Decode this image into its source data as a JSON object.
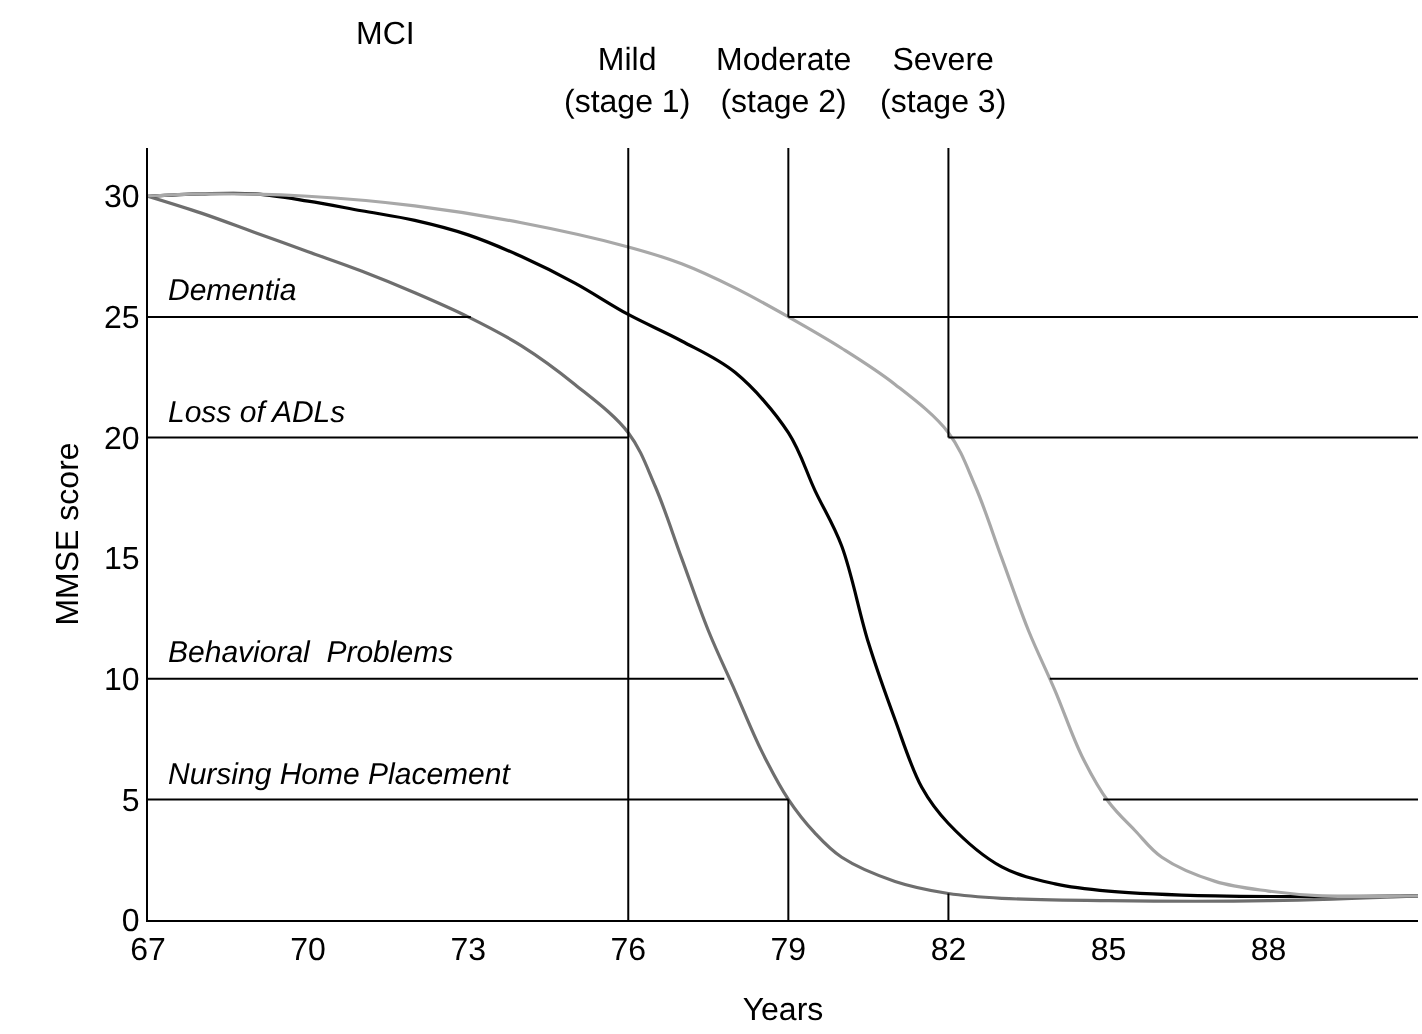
{
  "chart_data": {
    "type": "line",
    "xlabel": "Years",
    "ylabel": "MMSE score",
    "xlim": [
      67,
      90.8
    ],
    "ylim": [
      0,
      32
    ],
    "xticks": [
      67,
      70,
      73,
      76,
      79,
      82,
      85,
      88
    ],
    "yticks": [
      0,
      5,
      10,
      15,
      20,
      25,
      30
    ],
    "marker": "none",
    "line_style": "solid",
    "series": [
      {
        "color": "#6e6e6e",
        "x": [
          67,
          68,
          69,
          70,
          71,
          72,
          73,
          74,
          75,
          76,
          76.5,
          77,
          77.5,
          78,
          78.5,
          79,
          79.5,
          80,
          81,
          82,
          83,
          85,
          88,
          90.8
        ],
        "values": [
          30,
          29.3,
          28.5,
          27.7,
          26.9,
          26.0,
          25.0,
          23.8,
          22.2,
          20.2,
          18,
          15,
          12,
          9.5,
          7,
          5,
          3.6,
          2.6,
          1.6,
          1.1,
          0.9,
          0.8,
          0.8,
          1.0
        ]
      },
      {
        "color": "#000000",
        "x": [
          67,
          68,
          69,
          70,
          71,
          72,
          73,
          74,
          75,
          76,
          77,
          78,
          79,
          79.5,
          80,
          80.5,
          81,
          81.5,
          82,
          83,
          84,
          85,
          87,
          90.8
        ],
        "values": [
          30,
          30.1,
          30.1,
          29.8,
          29.4,
          29.0,
          28.4,
          27.5,
          26.4,
          25.1,
          24.0,
          22.7,
          20.2,
          17.8,
          15.5,
          11.5,
          8.3,
          5.5,
          4.0,
          2.2,
          1.5,
          1.2,
          1.0,
          1.0
        ]
      },
      {
        "color": "#a8a8a8",
        "x": [
          67,
          68,
          70,
          72,
          74,
          76,
          77,
          78,
          79,
          80,
          81,
          82,
          82.5,
          83,
          83.5,
          84,
          84.5,
          85,
          85.5,
          86,
          87,
          88,
          89,
          90.8
        ],
        "values": [
          30,
          30.1,
          30.0,
          29.6,
          28.9,
          27.9,
          27.2,
          26.2,
          25.0,
          23.7,
          22.2,
          20.2,
          18.0,
          15.0,
          12.0,
          9.5,
          6.8,
          4.9,
          3.7,
          2.6,
          1.6,
          1.2,
          1.0,
          1.0
        ]
      },
      {
        "color": "#000000",
        "x": [
          67,
          73.05
        ],
        "values": [
          25,
          25
        ]
      },
      {
        "color": "#000000",
        "x": [
          79,
          90.8
        ],
        "values": [
          25,
          25
        ]
      },
      {
        "color": "#000000",
        "x": [
          67,
          76
        ],
        "values": [
          20,
          20
        ]
      },
      {
        "color": "#000000",
        "x": [
          82,
          90.8
        ],
        "values": [
          20,
          20
        ]
      },
      {
        "color": "#000000",
        "x": [
          67,
          77.8
        ],
        "values": [
          10,
          10
        ]
      },
      {
        "color": "#000000",
        "x": [
          83.9,
          90.8
        ],
        "values": [
          10,
          10
        ]
      },
      {
        "color": "#000000",
        "x": [
          67,
          79
        ],
        "values": [
          5,
          5
        ]
      },
      {
        "color": "#000000",
        "x": [
          84.9,
          90.8
        ],
        "values": [
          5,
          5
        ]
      },
      {
        "color": "#000000",
        "x": [
          76,
          76
        ],
        "values": [
          32,
          0
        ]
      },
      {
        "color": "#000000",
        "x": [
          79,
          79
        ],
        "values": [
          32,
          25
        ]
      },
      {
        "color": "#000000",
        "x": [
          79,
          79
        ],
        "values": [
          5,
          0
        ]
      },
      {
        "color": "#000000",
        "x": [
          82,
          82
        ],
        "values": [
          32,
          20
        ]
      },
      {
        "color": "#000000",
        "x": [
          82,
          82
        ],
        "values": [
          1.1,
          0
        ]
      }
    ],
    "annotations": [
      {
        "text": "Dementia",
        "y": 25
      },
      {
        "text": "Loss of ADLs",
        "y": 20
      },
      {
        "text": "Behavioral  Problems",
        "y": 10
      },
      {
        "text": "Nursing Home Placement",
        "y": 5
      },
      "MCI",
      "Mild\n(stage 1)",
      "Moderate\n(stage 2)",
      "Severe\n(stage 3)"
    ]
  }
}
